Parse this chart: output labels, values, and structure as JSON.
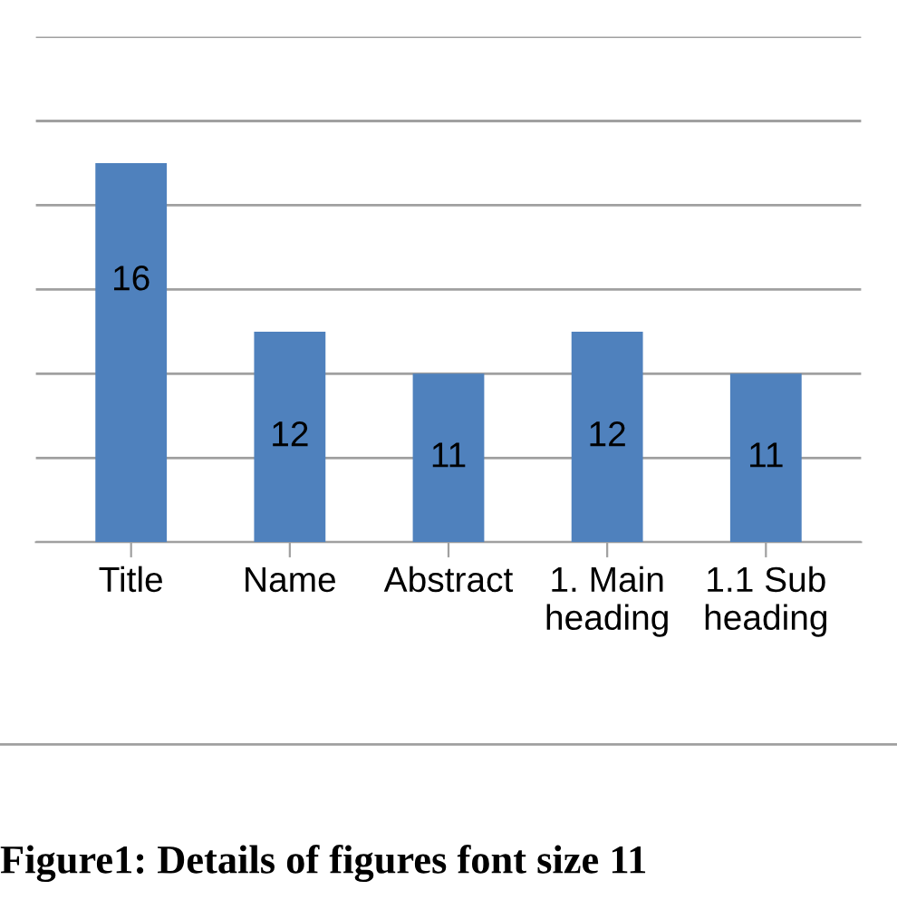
{
  "chart_data": {
    "type": "bar",
    "title": "Figure1: Details of figures font size 11",
    "categories": [
      "Title",
      "Name",
      "Abstract",
      "1. Main\nheading",
      "1.1 Sub\nheading"
    ],
    "values": [
      16,
      12,
      11,
      12,
      11
    ],
    "color": "#4f81bd",
    "data_labels": true,
    "ylim": [
      7,
      19
    ],
    "yticks": [
      {
        "value": 7,
        "label": null
      },
      {
        "value": 9,
        "label": null
      },
      {
        "value": 11,
        "label": null
      },
      {
        "value": 13,
        "label": null
      },
      {
        "value": 15,
        "label": null
      },
      {
        "value": 17,
        "label": null
      },
      {
        "value": 19,
        "label": null
      }
    ],
    "grid": "y",
    "tick_labels": "x"
  }
}
